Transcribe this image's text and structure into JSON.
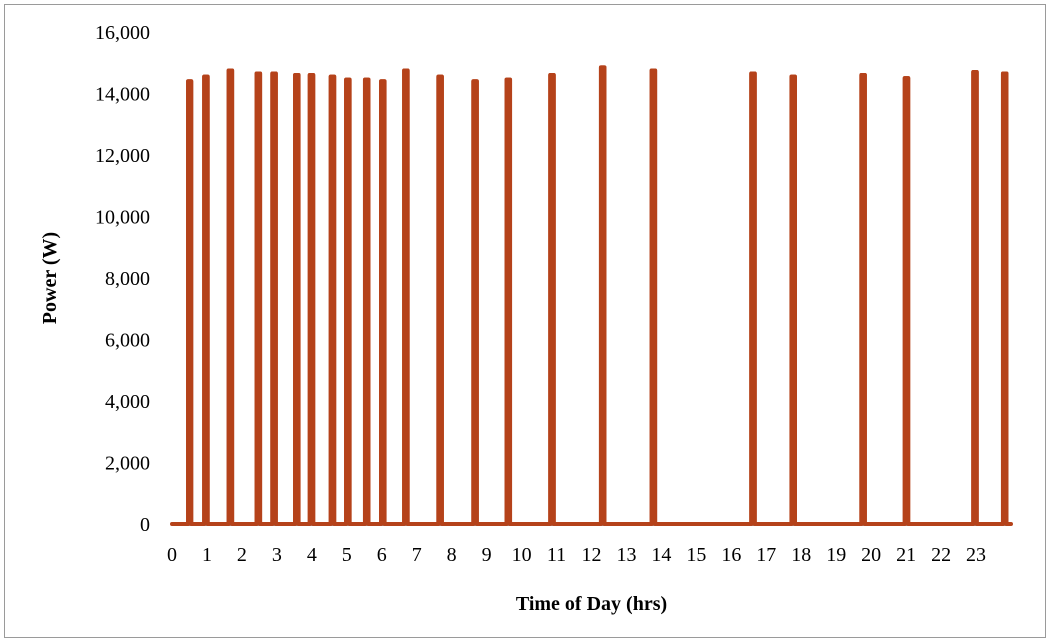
{
  "chart_data": {
    "type": "line",
    "title": "",
    "xlabel": "Time of Day (hrs)",
    "ylabel": "Power (W)",
    "xlim": [
      0,
      24
    ],
    "ylim": [
      0,
      16000
    ],
    "x_ticks": [
      "0",
      "1",
      "2",
      "3",
      "4",
      "5",
      "6",
      "7",
      "8",
      "9",
      "10",
      "11",
      "12",
      "13",
      "14",
      "15",
      "16",
      "17",
      "18",
      "19",
      "20",
      "21",
      "22",
      "23"
    ],
    "y_ticks": [
      "0",
      "2,000",
      "4,000",
      "6,000",
      "8,000",
      "10,000",
      "12,000",
      "14,000",
      "16,000"
    ],
    "y_tick_values": [
      0,
      2000,
      4000,
      6000,
      8000,
      10000,
      12000,
      14000,
      16000
    ],
    "grid": false,
    "legend": "none",
    "series_color": "#B5421A",
    "baseline_color": "#9a9a9a",
    "pulses": [
      {
        "start": 0.46,
        "end": 0.55,
        "value": 14400
      },
      {
        "start": 0.92,
        "end": 1.02,
        "value": 14550
      },
      {
        "start": 1.62,
        "end": 1.72,
        "value": 14750
      },
      {
        "start": 2.42,
        "end": 2.52,
        "value": 14650
      },
      {
        "start": 2.87,
        "end": 2.97,
        "value": 14650
      },
      {
        "start": 3.52,
        "end": 3.62,
        "value": 14600
      },
      {
        "start": 3.94,
        "end": 4.04,
        "value": 14600
      },
      {
        "start": 4.54,
        "end": 4.64,
        "value": 14550
      },
      {
        "start": 4.98,
        "end": 5.08,
        "value": 14450
      },
      {
        "start": 5.52,
        "end": 5.62,
        "value": 14450
      },
      {
        "start": 5.98,
        "end": 6.08,
        "value": 14400
      },
      {
        "start": 6.64,
        "end": 6.74,
        "value": 14750
      },
      {
        "start": 7.62,
        "end": 7.72,
        "value": 14550
      },
      {
        "start": 8.62,
        "end": 8.72,
        "value": 14400
      },
      {
        "start": 9.57,
        "end": 9.67,
        "value": 14450
      },
      {
        "start": 10.82,
        "end": 10.92,
        "value": 14600
      },
      {
        "start": 12.27,
        "end": 12.37,
        "value": 14850
      },
      {
        "start": 13.72,
        "end": 13.82,
        "value": 14750
      },
      {
        "start": 16.57,
        "end": 16.67,
        "value": 14650
      },
      {
        "start": 17.72,
        "end": 17.82,
        "value": 14550
      },
      {
        "start": 19.72,
        "end": 19.82,
        "value": 14600
      },
      {
        "start": 20.96,
        "end": 21.06,
        "value": 14500
      },
      {
        "start": 22.92,
        "end": 23.02,
        "value": 14700
      },
      {
        "start": 23.77,
        "end": 23.87,
        "value": 14650
      }
    ]
  }
}
